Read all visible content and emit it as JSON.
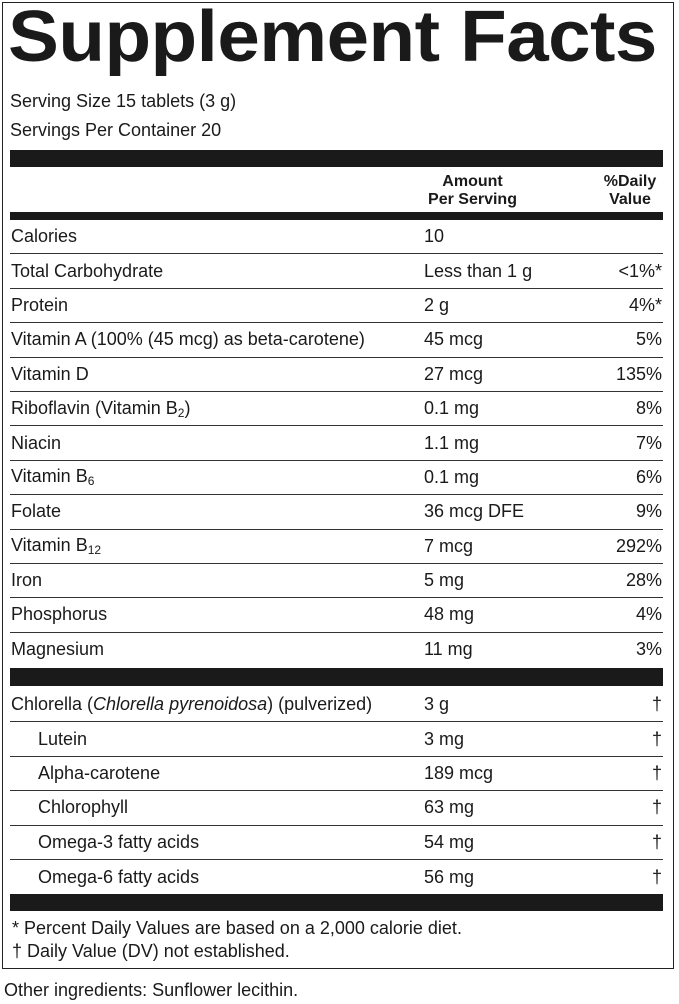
{
  "title": "Supplement Facts",
  "serving_size": "Serving Size 15 tablets (3 g)",
  "servings_per_container": "Servings Per Container 20",
  "header": {
    "amount_line1": "Amount",
    "amount_line2": "Per Serving",
    "dv_line1": "%Daily",
    "dv_line2": "Value"
  },
  "nutrients": [
    {
      "name": "Calories",
      "amount": "10",
      "dv": ""
    },
    {
      "name": "Total Carbohydrate",
      "amount": "Less than 1 g",
      "dv": "<1%*"
    },
    {
      "name": "Protein",
      "amount": "2 g",
      "dv": "4%*"
    },
    {
      "name": "Vitamin A (100% (45 mcg) as beta-carotene)",
      "amount": "45 mcg",
      "dv": "5%"
    },
    {
      "name": "Vitamin D",
      "amount": "27 mcg",
      "dv": "135%"
    },
    {
      "name": "Riboflavin (Vitamin B",
      "sub": "2",
      "tail": ")",
      "amount": "0.1 mg",
      "dv": "8%"
    },
    {
      "name": "Niacin",
      "amount": "1.1 mg",
      "dv": "7%"
    },
    {
      "name": "Vitamin B",
      "sub": "6",
      "amount": "0.1 mg",
      "dv": "6%"
    },
    {
      "name": "Folate",
      "amount": "36 mcg DFE",
      "dv": "9%"
    },
    {
      "name": "Vitamin B",
      "sub": "12",
      "amount": "7 mcg",
      "dv": "292%"
    },
    {
      "name": "Iron",
      "amount": "5 mg",
      "dv": "28%"
    },
    {
      "name": "Phosphorus",
      "amount": "48 mg",
      "dv": "4%"
    },
    {
      "name": "Magnesium",
      "amount": "11 mg",
      "dv": "3%"
    }
  ],
  "other_nutrients": [
    {
      "name": "Chlorella (",
      "italic": "Chlorella pyrenoidosa",
      "tail": ") (pulverized)",
      "amount": "3 g",
      "dv": "†"
    },
    {
      "name": "Lutein",
      "amount": "3 mg",
      "dv": "†",
      "indent": true
    },
    {
      "name": "Alpha-carotene",
      "amount": "189 mcg",
      "dv": "†",
      "indent": true
    },
    {
      "name": "Chlorophyll",
      "amount": "63 mg",
      "dv": "†",
      "indent": true
    },
    {
      "name": "Omega-3 fatty acids",
      "amount": "54 mg",
      "dv": "†",
      "indent": true
    },
    {
      "name": "Omega-6 fatty acids",
      "amount": "56 mg",
      "dv": "†",
      "indent": true
    }
  ],
  "footnotes": [
    "* Percent Daily Values are based on a 2,000 calorie diet.",
    "† Daily Value (DV) not established."
  ],
  "other_ingredients": "Other ingredients: Sunflower lecithin."
}
